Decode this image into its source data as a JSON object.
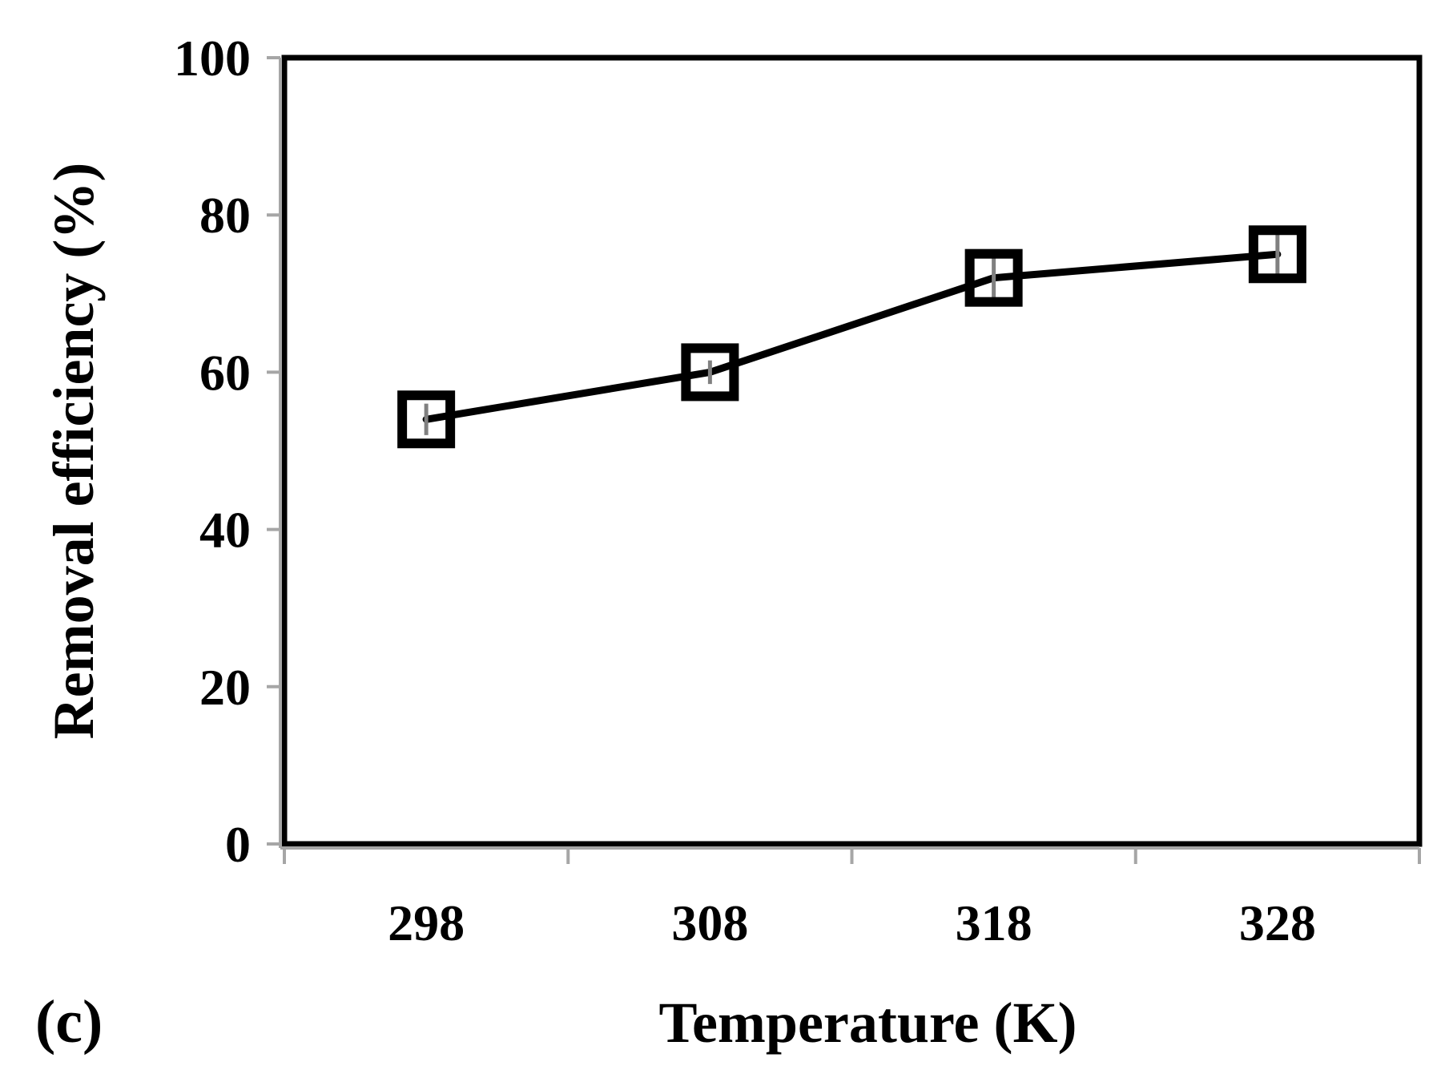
{
  "panel_label": "(c)",
  "chart_data": {
    "type": "line",
    "categories": [
      "298",
      "308",
      "318",
      "328"
    ],
    "series": [
      {
        "values": [
          54,
          60,
          72,
          75
        ],
        "error": [
          2,
          1.5,
          3,
          3
        ],
        "marker": "open-square",
        "color": "#000000"
      }
    ],
    "title": "",
    "xlabel": "Temperature (K)",
    "ylabel": "Removal efficiency (%)",
    "ylim": [
      0,
      100
    ],
    "yticks": [
      0,
      20,
      40,
      60,
      80,
      100
    ],
    "grid": false,
    "legend": "none"
  }
}
